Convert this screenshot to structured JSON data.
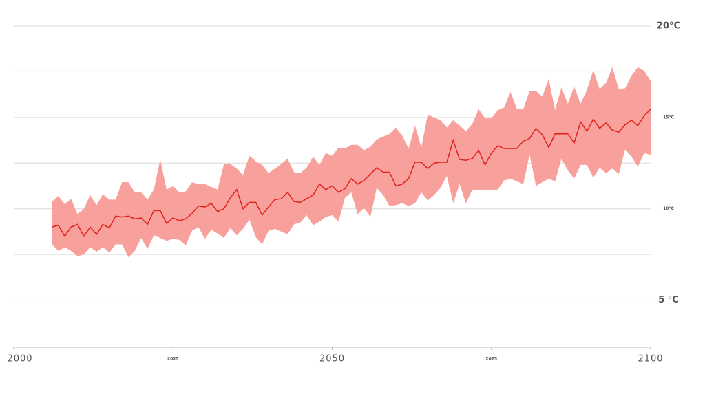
{
  "chart_data": {
    "type": "line",
    "x": [
      2006,
      2007,
      2008,
      2009,
      2010,
      2011,
      2012,
      2013,
      2014,
      2015,
      2016,
      2017,
      2018,
      2019,
      2020,
      2021,
      2022,
      2023,
      2024,
      2025,
      2026,
      2027,
      2028,
      2029,
      2030,
      2031,
      2032,
      2033,
      2034,
      2035,
      2036,
      2037,
      2038,
      2039,
      2040,
      2041,
      2042,
      2043,
      2044,
      2045,
      2046,
      2047,
      2048,
      2049,
      2050,
      2051,
      2052,
      2053,
      2054,
      2055,
      2056,
      2057,
      2058,
      2059,
      2060,
      2061,
      2062,
      2063,
      2064,
      2065,
      2066,
      2067,
      2068,
      2069,
      2070,
      2071,
      2072,
      2073,
      2074,
      2075,
      2076,
      2077,
      2078,
      2079,
      2080,
      2081,
      2082,
      2083,
      2084,
      2085,
      2086,
      2087,
      2088,
      2089,
      2090,
      2091,
      2092,
      2093,
      2094,
      2095,
      2096,
      2097,
      2098,
      2099,
      2100
    ],
    "values": [
      9.0,
      9.1,
      8.5,
      9.0,
      9.15,
      8.5,
      9.0,
      8.6,
      9.15,
      8.95,
      9.6,
      9.55,
      9.6,
      9.45,
      9.5,
      9.15,
      9.9,
      9.9,
      9.2,
      9.5,
      9.35,
      9.45,
      9.75,
      10.15,
      10.1,
      10.3,
      9.85,
      10.0,
      10.6,
      11.05,
      10.0,
      10.35,
      10.35,
      9.65,
      10.1,
      10.5,
      10.55,
      10.9,
      10.4,
      10.35,
      10.55,
      10.75,
      11.35,
      11.05,
      11.25,
      10.9,
      11.1,
      11.65,
      11.35,
      11.55,
      11.9,
      12.25,
      12.0,
      12.0,
      11.25,
      11.35,
      11.65,
      12.55,
      12.55,
      12.2,
      12.5,
      12.55,
      12.55,
      13.75,
      12.7,
      12.65,
      12.75,
      13.2,
      12.4,
      13.05,
      13.45,
      13.3,
      13.3,
      13.3,
      13.7,
      13.85,
      14.4,
      14.05,
      13.35,
      14.1,
      14.1,
      14.1,
      13.6,
      14.75,
      14.25,
      14.9,
      14.4,
      14.7,
      14.3,
      14.2,
      14.6,
      14.85,
      14.55,
      15.1,
      15.45
    ],
    "upper": [
      10.4,
      10.7,
      10.25,
      10.55,
      9.7,
      10.0,
      10.75,
      10.2,
      10.8,
      10.5,
      10.5,
      11.45,
      11.45,
      10.9,
      10.9,
      10.5,
      11.05,
      12.7,
      11.05,
      11.25,
      10.9,
      10.95,
      11.45,
      11.35,
      11.35,
      11.2,
      11.05,
      12.45,
      12.45,
      12.2,
      11.85,
      12.9,
      12.6,
      12.4,
      11.95,
      12.2,
      12.45,
      12.75,
      12.0,
      11.95,
      12.25,
      12.85,
      12.4,
      13.05,
      12.9,
      13.35,
      13.3,
      13.5,
      13.5,
      13.2,
      13.4,
      13.8,
      13.95,
      14.1,
      14.45,
      14.0,
      13.3,
      14.55,
      13.35,
      15.15,
      15.0,
      14.85,
      14.45,
      14.85,
      14.55,
      14.25,
      14.65,
      15.45,
      14.95,
      14.95,
      15.4,
      15.55,
      16.4,
      15.45,
      15.45,
      16.45,
      16.45,
      16.15,
      17.1,
      15.4,
      16.65,
      15.75,
      16.7,
      15.75,
      16.5,
      17.6,
      16.55,
      16.9,
      17.75,
      16.55,
      16.6,
      17.3,
      17.75,
      17.55,
      17.0
    ],
    "lower": [
      8.05,
      7.7,
      7.9,
      7.7,
      7.4,
      7.5,
      7.9,
      7.65,
      7.9,
      7.6,
      8.05,
      8.05,
      7.35,
      7.7,
      8.4,
      7.8,
      8.55,
      8.4,
      8.25,
      8.35,
      8.3,
      8.0,
      8.8,
      9.0,
      8.35,
      8.85,
      8.65,
      8.4,
      8.95,
      8.55,
      8.9,
      9.4,
      8.45,
      8.05,
      8.8,
      8.9,
      8.75,
      8.6,
      9.15,
      9.25,
      9.65,
      9.1,
      9.3,
      9.55,
      9.65,
      9.3,
      10.6,
      10.9,
      9.7,
      10.05,
      9.55,
      11.15,
      10.75,
      10.15,
      10.2,
      10.3,
      10.15,
      10.3,
      10.9,
      10.45,
      10.75,
      11.15,
      11.8,
      10.3,
      11.35,
      10.3,
      11.05,
      11.0,
      11.05,
      11.0,
      11.05,
      11.55,
      11.65,
      11.5,
      11.35,
      12.95,
      11.25,
      11.45,
      11.65,
      11.5,
      12.75,
      12.1,
      11.65,
      12.4,
      12.4,
      11.7,
      12.25,
      11.95,
      12.2,
      11.9,
      13.25,
      12.85,
      12.3,
      13.05,
      12.95
    ],
    "color": "#e0201b",
    "band_color": "#f8a19c",
    "xlim": [
      2000,
      2100
    ],
    "xticks": [
      2000,
      2025,
      2050,
      2075,
      2100
    ],
    "ylim": [
      2.5,
      20.3
    ],
    "yticks": [
      {
        "value": 20,
        "label": "20°C"
      },
      {
        "value": 15,
        "label": "15°C"
      },
      {
        "value": 10,
        "label": "10°C"
      },
      {
        "value": 5,
        "label": "5 °C"
      }
    ],
    "ygrid": [
      5,
      7.5,
      10,
      12.5,
      15,
      17.5,
      20
    ]
  }
}
